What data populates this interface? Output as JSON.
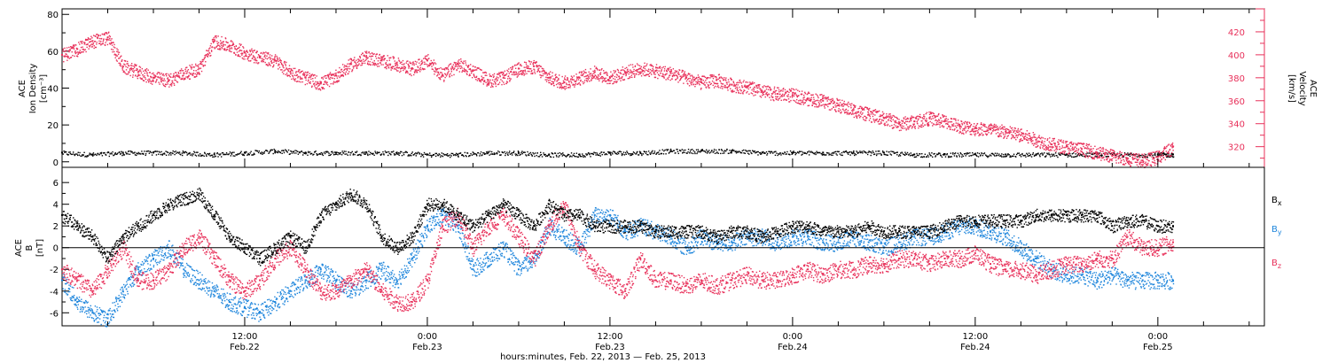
{
  "figure": {
    "xlabel": "hours:minutes, Feb. 22, 2013 — Feb. 25, 2013",
    "time_ticks": [
      {
        "time": "12:00",
        "date": "Feb.22",
        "hours": 12
      },
      {
        "time": "0:00",
        "date": "Feb.23",
        "hours": 24
      },
      {
        "time": "12:00",
        "date": "Feb.23",
        "hours": 36
      },
      {
        "time": "0:00",
        "date": "Feb.24",
        "hours": 48
      },
      {
        "time": "12:00",
        "date": "Feb.24",
        "hours": 60
      },
      {
        "time": "0:00",
        "date": "Feb.25",
        "hours": 72
      }
    ]
  },
  "colors": {
    "black": "#000000",
    "red": "#e8305a",
    "blue": "#1f86dc"
  },
  "chart_data": [
    {
      "type": "scatter",
      "panel": "top",
      "ylabel_lines": [
        "ACE",
        "Ion Density",
        "[cm⁻³]"
      ],
      "ylabel2_lines": [
        "ACE",
        "Velocity",
        "[km/s]"
      ],
      "xlim": [
        0,
        79
      ],
      "ylim": [
        -3,
        83
      ],
      "yticks": [
        0,
        20,
        40,
        60,
        80
      ],
      "ylim2": [
        302,
        440
      ],
      "yticks2": [
        320,
        340,
        360,
        380,
        400,
        420
      ],
      "series": [
        {
          "axis": "left",
          "color": "black",
          "x": [
            0,
            2,
            4,
            6,
            8,
            10,
            12,
            14,
            16,
            18,
            20,
            22,
            24,
            26,
            28,
            30,
            32,
            34,
            36,
            38,
            40,
            42,
            44,
            46,
            48,
            50,
            52,
            54,
            56,
            58,
            60,
            62,
            64,
            66,
            68,
            70,
            72,
            73
          ],
          "y": [
            5,
            4,
            5,
            5,
            5,
            4,
            5,
            6,
            5,
            5,
            5,
            5,
            4,
            4,
            5,
            5,
            4,
            4,
            5,
            5,
            6,
            6,
            6,
            5,
            5,
            5,
            5,
            5,
            4,
            4,
            4,
            4,
            4,
            4,
            4,
            4,
            4,
            4
          ]
        },
        {
          "axis": "right",
          "color": "red",
          "x": [
            0,
            1,
            2,
            3,
            4,
            5,
            6,
            7,
            8,
            9,
            10,
            11,
            12,
            13,
            14,
            15,
            16,
            17,
            18,
            19,
            20,
            21,
            22,
            23,
            24,
            25,
            26,
            27,
            28,
            29,
            30,
            31,
            32,
            33,
            34,
            35,
            36,
            37,
            38,
            39,
            40,
            41,
            42,
            43,
            44,
            45,
            46,
            47,
            48,
            49,
            50,
            51,
            52,
            53,
            54,
            55,
            56,
            57,
            58,
            59,
            60,
            61,
            62,
            63,
            64,
            65,
            66,
            67,
            68,
            69,
            70,
            71,
            72,
            73
          ],
          "y": [
            400,
            405,
            412,
            415,
            390,
            385,
            380,
            378,
            384,
            388,
            412,
            408,
            402,
            398,
            395,
            385,
            380,
            375,
            382,
            392,
            398,
            395,
            392,
            388,
            395,
            382,
            392,
            386,
            378,
            380,
            388,
            390,
            380,
            376,
            380,
            385,
            380,
            385,
            388,
            386,
            384,
            380,
            376,
            378,
            374,
            372,
            368,
            366,
            365,
            362,
            360,
            356,
            352,
            348,
            345,
            340,
            342,
            345,
            342,
            338,
            336,
            335,
            333,
            330,
            326,
            322,
            320,
            318,
            315,
            312,
            310,
            308,
            311,
            320
          ]
        }
      ]
    },
    {
      "type": "scatter",
      "panel": "bottom",
      "ylabel_lines": [
        "ACE",
        "B",
        "[nT]"
      ],
      "xlim": [
        0,
        79
      ],
      "ylim": [
        -7.2,
        7.4
      ],
      "yticks": [
        -6,
        -4,
        -2,
        0,
        2,
        4,
        6
      ],
      "series": [
        {
          "name": "Bx",
          "color": "black",
          "x": [
            0,
            1,
            2,
            3,
            4,
            5,
            6,
            7,
            8,
            9,
            10,
            11,
            12,
            13,
            14,
            15,
            16,
            17,
            18,
            19,
            20,
            21,
            22,
            23,
            24,
            25,
            26,
            27,
            28,
            29,
            30,
            31,
            32,
            33,
            34,
            35,
            36,
            37,
            38,
            39,
            40,
            41,
            42,
            43,
            44,
            45,
            46,
            47,
            48,
            49,
            50,
            51,
            52,
            53,
            54,
            55,
            56,
            57,
            58,
            59,
            60,
            61,
            62,
            63,
            64,
            65,
            66,
            67,
            68,
            69,
            70,
            71,
            72,
            73
          ],
          "y": [
            3,
            2,
            1,
            -1,
            1,
            2,
            3,
            4,
            4.5,
            5,
            3,
            1,
            0,
            -1,
            0,
            1,
            0,
            3,
            4,
            5,
            4,
            1,
            0,
            1,
            4,
            4,
            3,
            2,
            3,
            4,
            3,
            2,
            4,
            3,
            3,
            2,
            2,
            2,
            2,
            1.5,
            1.5,
            1.5,
            1.5,
            1,
            1.5,
            1.5,
            1,
            1.5,
            2,
            2,
            1.5,
            1.5,
            1.5,
            2,
            1.5,
            1.5,
            1.5,
            1.5,
            2,
            2.5,
            2.5,
            2.5,
            2.5,
            2.5,
            3,
            3,
            3,
            3,
            3,
            2,
            2.5,
            2.5,
            2,
            2
          ]
        },
        {
          "name": "By",
          "color": "blue",
          "x": [
            0,
            1,
            2,
            3,
            4,
            5,
            6,
            7,
            8,
            9,
            10,
            11,
            12,
            13,
            14,
            15,
            16,
            17,
            18,
            19,
            20,
            21,
            22,
            23,
            24,
            25,
            26,
            27,
            28,
            29,
            30,
            31,
            32,
            33,
            34,
            35,
            36,
            37,
            38,
            39,
            40,
            41,
            42,
            43,
            44,
            45,
            46,
            47,
            48,
            49,
            50,
            51,
            52,
            53,
            54,
            55,
            56,
            57,
            58,
            59,
            60,
            61,
            62,
            63,
            64,
            65,
            66,
            67,
            68,
            69,
            70,
            71,
            72,
            73
          ],
          "y": [
            -3,
            -5,
            -6,
            -6.5,
            -4,
            -2,
            -1,
            0,
            -2,
            -3,
            -4,
            -5,
            -5.5,
            -6,
            -5,
            -4,
            -3,
            -2,
            -3,
            -4,
            -3,
            -2,
            -3,
            -1,
            2,
            3,
            2,
            -2,
            -1,
            0,
            -2,
            -1,
            2,
            1,
            0,
            3,
            3,
            1.5,
            2,
            1.5,
            1,
            0,
            1,
            0.5,
            0.5,
            1,
            1,
            0.5,
            1,
            1,
            0.5,
            0.5,
            1,
            0.5,
            0,
            0.5,
            1,
            1,
            1.5,
            2,
            2,
            1.5,
            1,
            0,
            -1,
            -2,
            -2.5,
            -2.5,
            -3,
            -2.5,
            -3,
            -3,
            -3,
            -3
          ]
        },
        {
          "name": "Bz",
          "color": "red",
          "x": [
            0,
            1,
            2,
            3,
            4,
            5,
            6,
            7,
            8,
            9,
            10,
            11,
            12,
            13,
            14,
            15,
            16,
            17,
            18,
            19,
            20,
            21,
            22,
            23,
            24,
            25,
            26,
            27,
            28,
            29,
            30,
            31,
            32,
            33,
            34,
            35,
            36,
            37,
            38,
            39,
            40,
            41,
            42,
            43,
            44,
            45,
            46,
            47,
            48,
            49,
            50,
            51,
            52,
            53,
            54,
            55,
            56,
            57,
            58,
            59,
            60,
            61,
            62,
            63,
            64,
            65,
            66,
            67,
            68,
            69,
            70,
            71,
            72,
            73
          ],
          "y": [
            -2,
            -3,
            -4,
            -2,
            0,
            -3,
            -3,
            -2,
            0,
            1,
            -1,
            -3,
            -4,
            -3,
            -1,
            0,
            -2,
            -4,
            -4,
            -3,
            -2,
            -4,
            -5,
            -5,
            -3,
            2,
            3,
            0,
            2,
            3,
            1,
            -1,
            2,
            4,
            0,
            -2,
            -3,
            -4,
            -1,
            -3,
            -3,
            -3.5,
            -3,
            -3.5,
            -3,
            -2.5,
            -3,
            -3,
            -2.5,
            -2,
            -2.5,
            -2,
            -2,
            -1.5,
            -1.5,
            -1,
            -1,
            -1.5,
            -1,
            -1,
            -0.5,
            -1.5,
            -2,
            -2,
            -2.5,
            -2,
            -1.5,
            -1.5,
            -1,
            -1,
            1,
            0,
            0,
            0.5
          ]
        }
      ],
      "legend": [
        "Bx",
        "By",
        "Bz"
      ]
    }
  ]
}
